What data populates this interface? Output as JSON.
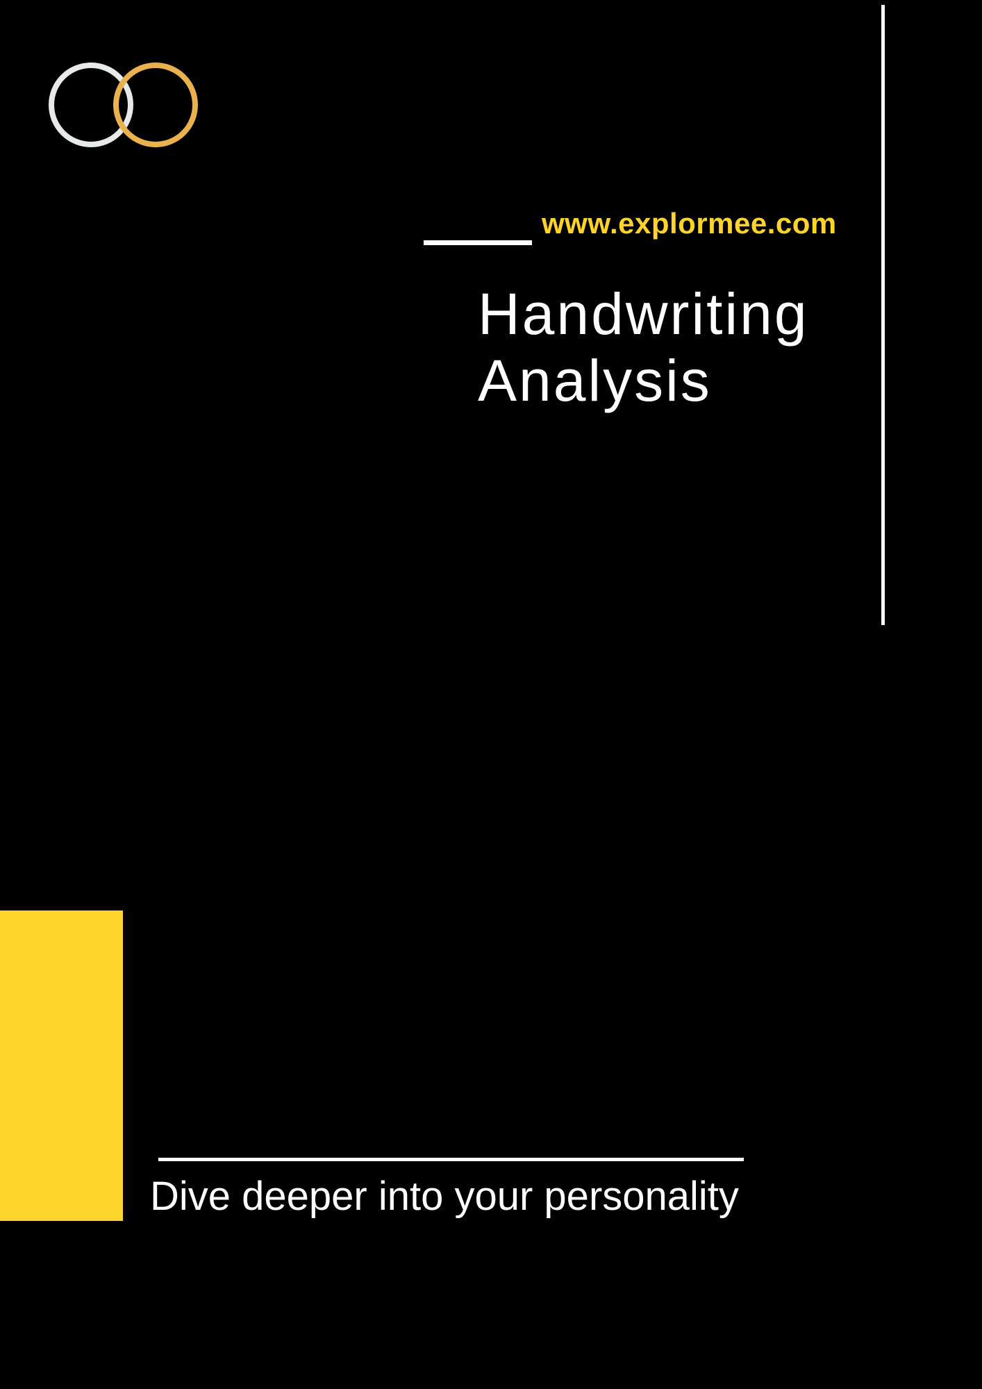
{
  "brand": {
    "logo_icon": "interlocking-rings-logo",
    "colors": {
      "background": "#000000",
      "accent": "#FFD42A",
      "ring_white": "#E6EAEA",
      "ring_gold": "#E9B24E",
      "text": "#FFFFFF"
    }
  },
  "header": {
    "website": "www.explormee.com"
  },
  "cover": {
    "title_line_1": "Handwriting",
    "title_line_2": "Analysis",
    "tagline": "Dive deeper into your personality"
  }
}
